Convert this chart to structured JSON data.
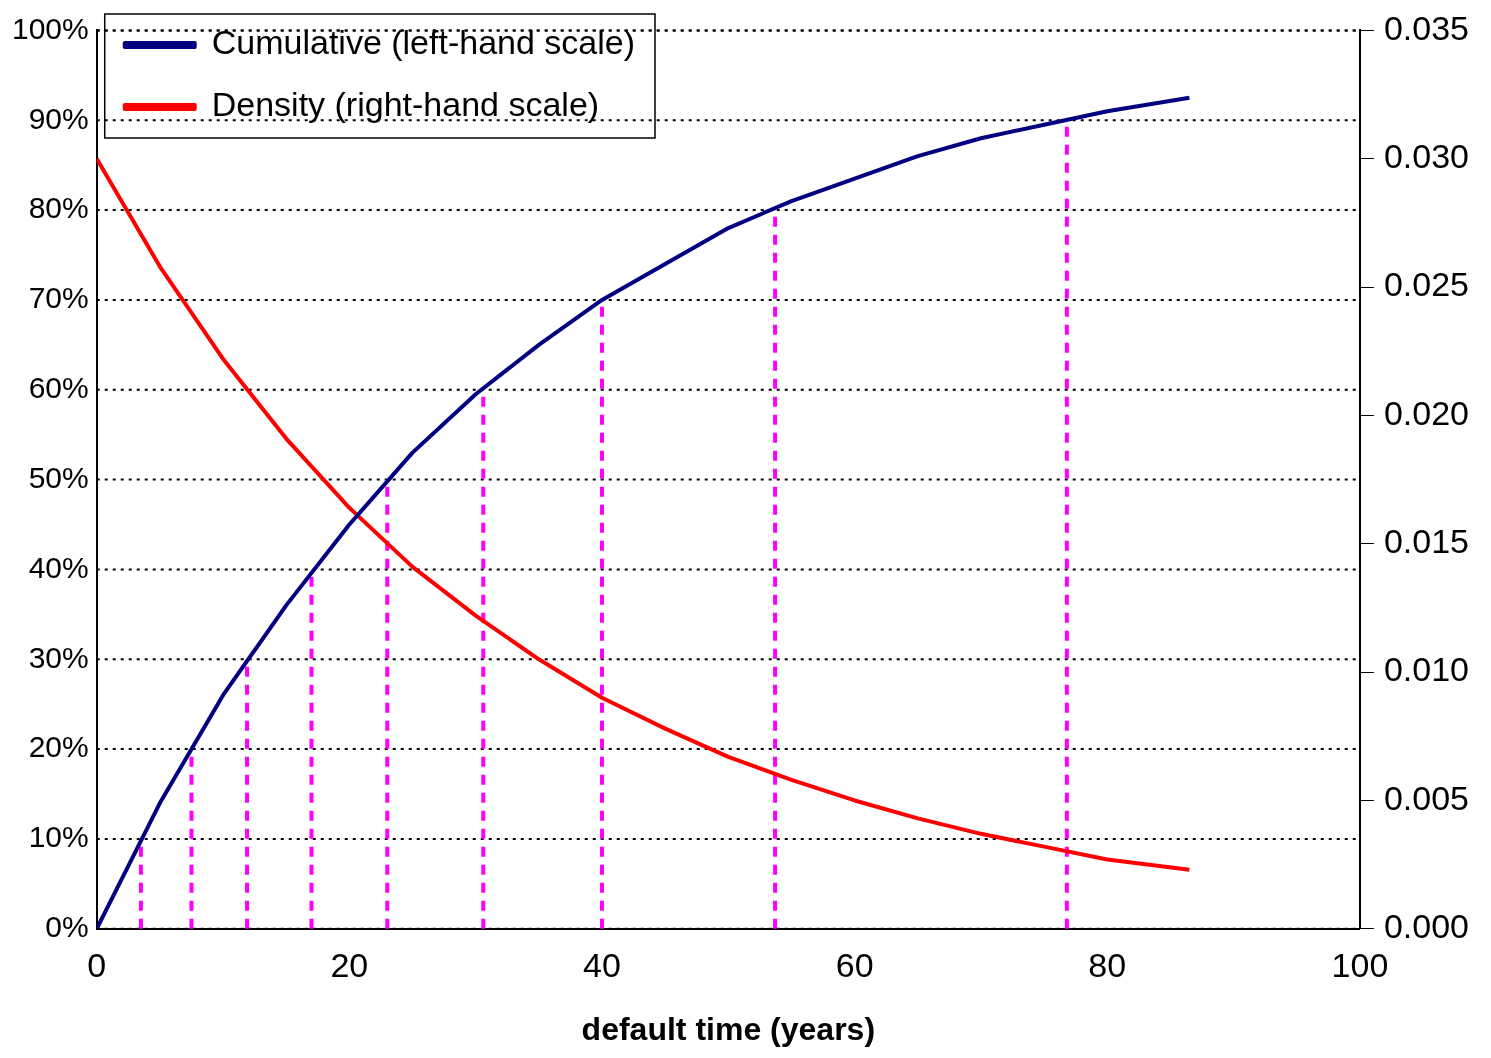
{
  "chart_data": {
    "type": "line",
    "xlabel": "default time (years)",
    "x": [
      0,
      5,
      10,
      15,
      20,
      25,
      30,
      35,
      40,
      45,
      50,
      55,
      60,
      65,
      70,
      75,
      80,
      86.5
    ],
    "series": [
      {
        "name": "Cumulative (left-hand scale)",
        "color": "#000080",
        "values": [
          0,
          14,
          26,
          36,
          45,
          53,
          59.5,
          65,
          70,
          74,
          78,
          81,
          83.5,
          86,
          88,
          89.5,
          91,
          92.5
        ]
      },
      {
        "name": "Density (right-hand scale)",
        "color": "#ff0000",
        "axis": "y2",
        "values": [
          0.03,
          0.0258,
          0.0222,
          0.0191,
          0.0164,
          0.0141,
          0.0122,
          0.0105,
          0.009,
          0.0078,
          0.0067,
          0.0058,
          0.005,
          0.0043,
          0.0037,
          0.0032,
          0.0027,
          0.0023
        ]
      }
    ],
    "xlim": [
      0,
      100
    ],
    "xticks": [
      0,
      20,
      40,
      60,
      80,
      100
    ],
    "ylim": [
      0,
      100
    ],
    "yticks": [
      {
        "value": 0,
        "label": "0%"
      },
      {
        "value": 10,
        "label": "10%"
      },
      {
        "value": 20,
        "label": "20%"
      },
      {
        "value": 30,
        "label": "30%"
      },
      {
        "value": 40,
        "label": "40%"
      },
      {
        "value": 50,
        "label": "50%"
      },
      {
        "value": 60,
        "label": "60%"
      },
      {
        "value": 70,
        "label": "70%"
      },
      {
        "value": 80,
        "label": "80%"
      },
      {
        "value": 90,
        "label": "90%"
      },
      {
        "value": 100,
        "label": "100%"
      }
    ],
    "y2lim": [
      0,
      0.035
    ],
    "y2ticks": [
      {
        "value": 0,
        "label": "0.000"
      },
      {
        "value": 0.005,
        "label": "0.005"
      },
      {
        "value": 0.01,
        "label": "0.010"
      },
      {
        "value": 0.015,
        "label": "0.015"
      },
      {
        "value": 0.02,
        "label": "0.020"
      },
      {
        "value": 0.025,
        "label": "0.025"
      },
      {
        "value": 0.03,
        "label": "0.030"
      },
      {
        "value": 0.035,
        "label": "0.035"
      }
    ],
    "ref_lines": [
      {
        "axis": "x",
        "value": 3.5,
        "color": "#ff00ff",
        "line_style": "dashed"
      },
      {
        "axis": "x",
        "value": 7.5,
        "color": "#ff00ff",
        "line_style": "dashed"
      },
      {
        "axis": "x",
        "value": 11.9,
        "color": "#ff00ff",
        "line_style": "dashed"
      },
      {
        "axis": "x",
        "value": 17,
        "color": "#ff00ff",
        "line_style": "dashed"
      },
      {
        "axis": "x",
        "value": 23,
        "color": "#ff00ff",
        "line_style": "dashed"
      },
      {
        "axis": "x",
        "value": 30.6,
        "color": "#ff00ff",
        "line_style": "dashed"
      },
      {
        "axis": "x",
        "value": 40,
        "color": "#ff00ff",
        "line_style": "dashed"
      },
      {
        "axis": "x",
        "value": 53.7,
        "color": "#ff00ff",
        "line_style": "dashed"
      },
      {
        "axis": "x",
        "value": 76.8,
        "color": "#ff00ff",
        "line_style": "dashed"
      }
    ],
    "grid": "y",
    "legend": "top left",
    "marker": "none",
    "line_style": "solid"
  }
}
